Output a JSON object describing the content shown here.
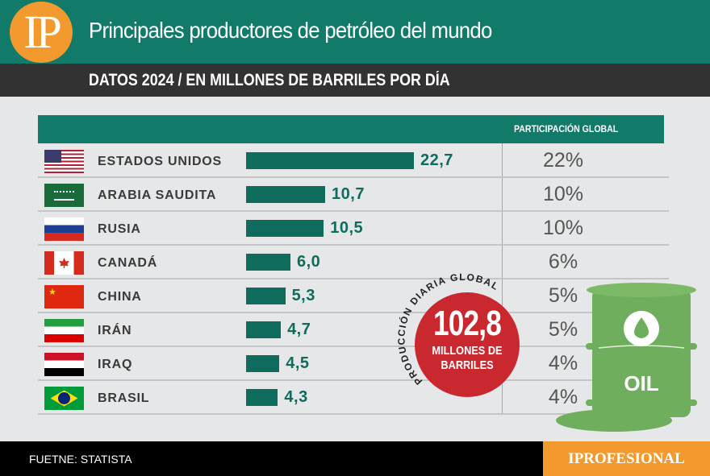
{
  "header": {
    "logo": "IP",
    "title": "Principales productores de petróleo del mundo",
    "subtitle": "DATOS 2024 / EN MILLONES DE BARRILES POR DÍA"
  },
  "table": {
    "share_header": "PARTICIPACIÓN GLOBAL"
  },
  "chart_data": {
    "type": "bar",
    "title": "Principales productores de petróleo del mundo",
    "subtitle": "DATOS 2024 / EN MILLONES DE BARRILES POR DÍA",
    "categories": [
      "ESTADOS UNIDOS",
      "ARABIA SAUDITA",
      "RUSIA",
      "CANADÁ",
      "CHINA",
      "IRÁN",
      "IRAQ",
      "BRASIL"
    ],
    "values": [
      22.7,
      10.7,
      10.5,
      6.0,
      5.3,
      4.7,
      4.5,
      4.3
    ],
    "value_labels": [
      "22,7",
      "10,7",
      "10,5",
      "6,0",
      "5,3",
      "4,7",
      "4,5",
      "4,3"
    ],
    "share_labels": [
      "22%",
      "10%",
      "10%",
      "6%",
      "5%",
      "5%",
      "4%",
      "4%"
    ],
    "orientation": "horizontal",
    "xlim": [
      0,
      22.7
    ]
  },
  "callout": {
    "arc_text": "PRODUCCIÓN DIARIA GLOBAL",
    "value": "102,8",
    "unit_line1": "MILLONES DE",
    "unit_line2": "BARRILES"
  },
  "barrel": {
    "label": "OIL",
    "color": "#6fae5c"
  },
  "footer": {
    "source": "FUETNE: STATISTA",
    "brand": "IPROFESIONAL"
  },
  "colors": {
    "teal": "#117a69",
    "bar": "#0f6b5c",
    "orange": "#f39a2e",
    "red": "#c9282f"
  }
}
